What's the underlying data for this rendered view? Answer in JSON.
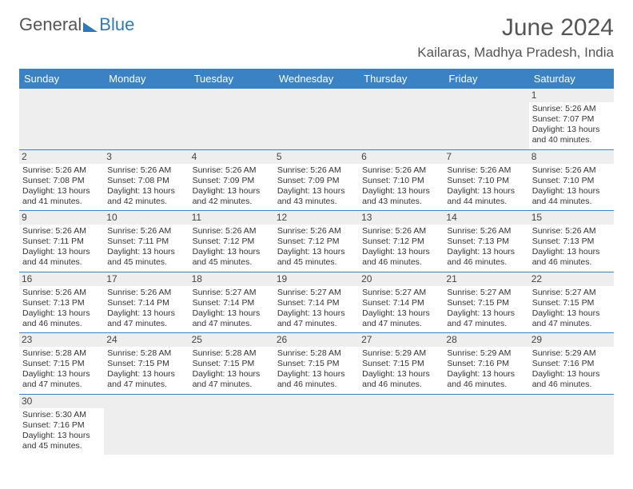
{
  "logo": {
    "part1": "General",
    "part2": "Blue"
  },
  "title": "June 2024",
  "subtitle": "Kailaras, Madhya Pradesh, India",
  "dayNames": [
    "Sunday",
    "Monday",
    "Tuesday",
    "Wednesday",
    "Thursday",
    "Friday",
    "Saturday"
  ],
  "colors": {
    "headerBg": "#3b82c4",
    "headerText": "#ffffff",
    "stripe": "#eeeeee",
    "borderLine": "#3b82c4",
    "titleColor": "#555555",
    "brandBlue": "#2f79b9"
  },
  "typography": {
    "titleFontSize": 30,
    "subtitleFontSize": 17,
    "dayHeaderFontSize": 13,
    "cellFontSize": 10.5,
    "daynumFontSize": 12
  },
  "layout": {
    "columns": 7,
    "rows": 6,
    "startDayIndex": 6
  },
  "days": [
    null,
    null,
    null,
    null,
    null,
    null,
    {
      "n": "1",
      "sr": "Sunrise: 5:26 AM",
      "ss": "Sunset: 7:07 PM",
      "d1": "Daylight: 13 hours",
      "d2": "and 40 minutes."
    },
    {
      "n": "2",
      "sr": "Sunrise: 5:26 AM",
      "ss": "Sunset: 7:08 PM",
      "d1": "Daylight: 13 hours",
      "d2": "and 41 minutes."
    },
    {
      "n": "3",
      "sr": "Sunrise: 5:26 AM",
      "ss": "Sunset: 7:08 PM",
      "d1": "Daylight: 13 hours",
      "d2": "and 42 minutes."
    },
    {
      "n": "4",
      "sr": "Sunrise: 5:26 AM",
      "ss": "Sunset: 7:09 PM",
      "d1": "Daylight: 13 hours",
      "d2": "and 42 minutes."
    },
    {
      "n": "5",
      "sr": "Sunrise: 5:26 AM",
      "ss": "Sunset: 7:09 PM",
      "d1": "Daylight: 13 hours",
      "d2": "and 43 minutes."
    },
    {
      "n": "6",
      "sr": "Sunrise: 5:26 AM",
      "ss": "Sunset: 7:10 PM",
      "d1": "Daylight: 13 hours",
      "d2": "and 43 minutes."
    },
    {
      "n": "7",
      "sr": "Sunrise: 5:26 AM",
      "ss": "Sunset: 7:10 PM",
      "d1": "Daylight: 13 hours",
      "d2": "and 44 minutes."
    },
    {
      "n": "8",
      "sr": "Sunrise: 5:26 AM",
      "ss": "Sunset: 7:10 PM",
      "d1": "Daylight: 13 hours",
      "d2": "and 44 minutes."
    },
    {
      "n": "9",
      "sr": "Sunrise: 5:26 AM",
      "ss": "Sunset: 7:11 PM",
      "d1": "Daylight: 13 hours",
      "d2": "and 44 minutes."
    },
    {
      "n": "10",
      "sr": "Sunrise: 5:26 AM",
      "ss": "Sunset: 7:11 PM",
      "d1": "Daylight: 13 hours",
      "d2": "and 45 minutes."
    },
    {
      "n": "11",
      "sr": "Sunrise: 5:26 AM",
      "ss": "Sunset: 7:12 PM",
      "d1": "Daylight: 13 hours",
      "d2": "and 45 minutes."
    },
    {
      "n": "12",
      "sr": "Sunrise: 5:26 AM",
      "ss": "Sunset: 7:12 PM",
      "d1": "Daylight: 13 hours",
      "d2": "and 45 minutes."
    },
    {
      "n": "13",
      "sr": "Sunrise: 5:26 AM",
      "ss": "Sunset: 7:12 PM",
      "d1": "Daylight: 13 hours",
      "d2": "and 46 minutes."
    },
    {
      "n": "14",
      "sr": "Sunrise: 5:26 AM",
      "ss": "Sunset: 7:13 PM",
      "d1": "Daylight: 13 hours",
      "d2": "and 46 minutes."
    },
    {
      "n": "15",
      "sr": "Sunrise: 5:26 AM",
      "ss": "Sunset: 7:13 PM",
      "d1": "Daylight: 13 hours",
      "d2": "and 46 minutes."
    },
    {
      "n": "16",
      "sr": "Sunrise: 5:26 AM",
      "ss": "Sunset: 7:13 PM",
      "d1": "Daylight: 13 hours",
      "d2": "and 46 minutes."
    },
    {
      "n": "17",
      "sr": "Sunrise: 5:26 AM",
      "ss": "Sunset: 7:14 PM",
      "d1": "Daylight: 13 hours",
      "d2": "and 47 minutes."
    },
    {
      "n": "18",
      "sr": "Sunrise: 5:27 AM",
      "ss": "Sunset: 7:14 PM",
      "d1": "Daylight: 13 hours",
      "d2": "and 47 minutes."
    },
    {
      "n": "19",
      "sr": "Sunrise: 5:27 AM",
      "ss": "Sunset: 7:14 PM",
      "d1": "Daylight: 13 hours",
      "d2": "and 47 minutes."
    },
    {
      "n": "20",
      "sr": "Sunrise: 5:27 AM",
      "ss": "Sunset: 7:14 PM",
      "d1": "Daylight: 13 hours",
      "d2": "and 47 minutes."
    },
    {
      "n": "21",
      "sr": "Sunrise: 5:27 AM",
      "ss": "Sunset: 7:15 PM",
      "d1": "Daylight: 13 hours",
      "d2": "and 47 minutes."
    },
    {
      "n": "22",
      "sr": "Sunrise: 5:27 AM",
      "ss": "Sunset: 7:15 PM",
      "d1": "Daylight: 13 hours",
      "d2": "and 47 minutes."
    },
    {
      "n": "23",
      "sr": "Sunrise: 5:28 AM",
      "ss": "Sunset: 7:15 PM",
      "d1": "Daylight: 13 hours",
      "d2": "and 47 minutes."
    },
    {
      "n": "24",
      "sr": "Sunrise: 5:28 AM",
      "ss": "Sunset: 7:15 PM",
      "d1": "Daylight: 13 hours",
      "d2": "and 47 minutes."
    },
    {
      "n": "25",
      "sr": "Sunrise: 5:28 AM",
      "ss": "Sunset: 7:15 PM",
      "d1": "Daylight: 13 hours",
      "d2": "and 47 minutes."
    },
    {
      "n": "26",
      "sr": "Sunrise: 5:28 AM",
      "ss": "Sunset: 7:15 PM",
      "d1": "Daylight: 13 hours",
      "d2": "and 46 minutes."
    },
    {
      "n": "27",
      "sr": "Sunrise: 5:29 AM",
      "ss": "Sunset: 7:15 PM",
      "d1": "Daylight: 13 hours",
      "d2": "and 46 minutes."
    },
    {
      "n": "28",
      "sr": "Sunrise: 5:29 AM",
      "ss": "Sunset: 7:16 PM",
      "d1": "Daylight: 13 hours",
      "d2": "and 46 minutes."
    },
    {
      "n": "29",
      "sr": "Sunrise: 5:29 AM",
      "ss": "Sunset: 7:16 PM",
      "d1": "Daylight: 13 hours",
      "d2": "and 46 minutes."
    },
    {
      "n": "30",
      "sr": "Sunrise: 5:30 AM",
      "ss": "Sunset: 7:16 PM",
      "d1": "Daylight: 13 hours",
      "d2": "and 45 minutes."
    },
    null,
    null,
    null,
    null,
    null,
    null
  ]
}
